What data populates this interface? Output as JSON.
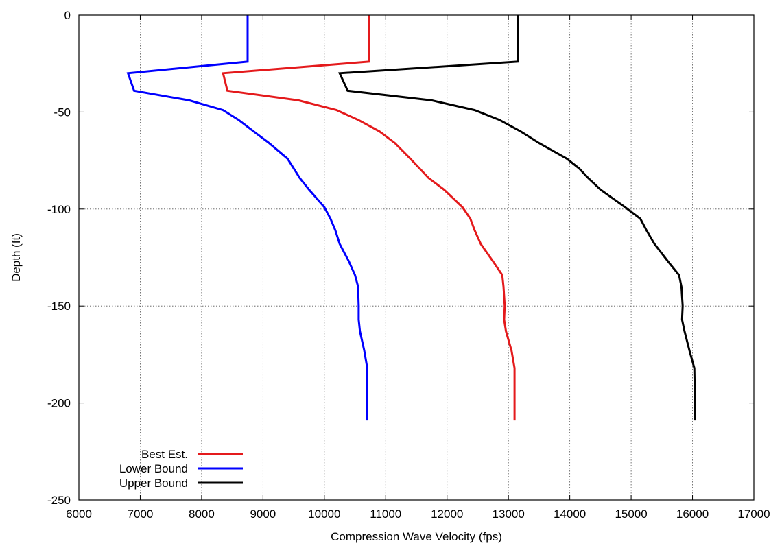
{
  "chart_data": {
    "type": "line",
    "title": "",
    "xlabel": "Compression Wave Velocity (fps)",
    "ylabel": "Depth (ft)",
    "xlim": [
      6000,
      17000
    ],
    "ylim": [
      -250,
      0
    ],
    "xticks": [
      6000,
      7000,
      8000,
      9000,
      10000,
      11000,
      12000,
      13000,
      14000,
      15000,
      16000,
      17000
    ],
    "yticks": [
      0,
      -50,
      -100,
      -150,
      -200,
      -250
    ],
    "xtick_labels": [
      "6000",
      "7000",
      "8000",
      "9000",
      "10000",
      "11000",
      "12000",
      "13000",
      "14000",
      "15000",
      "16000",
      "17000"
    ],
    "ytick_labels": [
      "0",
      "-50",
      "-100",
      "-150",
      "-200",
      "-250"
    ],
    "grid": true,
    "legend_position": "bottom-left",
    "series": [
      {
        "name": "Best Est.",
        "color": "#e41a1c",
        "points": [
          [
            10730,
            0
          ],
          [
            10730,
            -24
          ],
          [
            8350,
            -30
          ],
          [
            8420,
            -39
          ],
          [
            9580,
            -44
          ],
          [
            10200,
            -49
          ],
          [
            10550,
            -54
          ],
          [
            10900,
            -60
          ],
          [
            11150,
            -66
          ],
          [
            11400,
            -74
          ],
          [
            11550,
            -79
          ],
          [
            11700,
            -84
          ],
          [
            11950,
            -90
          ],
          [
            12250,
            -99
          ],
          [
            12380,
            -105
          ],
          [
            12450,
            -111
          ],
          [
            12550,
            -118
          ],
          [
            12750,
            -127
          ],
          [
            12900,
            -134
          ],
          [
            12920,
            -140
          ],
          [
            12940,
            -150
          ],
          [
            12930,
            -157
          ],
          [
            12960,
            -163
          ],
          [
            13050,
            -173
          ],
          [
            13100,
            -182
          ],
          [
            13100,
            -200
          ],
          [
            13100,
            -209
          ]
        ]
      },
      {
        "name": "Lower Bound",
        "color": "#0000ff",
        "points": [
          [
            8750,
            0
          ],
          [
            8750,
            -24
          ],
          [
            6800,
            -30
          ],
          [
            6900,
            -39
          ],
          [
            7800,
            -44
          ],
          [
            8350,
            -49
          ],
          [
            8600,
            -54
          ],
          [
            8850,
            -60
          ],
          [
            9100,
            -66
          ],
          [
            9400,
            -74
          ],
          [
            9500,
            -79
          ],
          [
            9600,
            -84
          ],
          [
            9750,
            -90
          ],
          [
            10000,
            -99
          ],
          [
            10100,
            -105
          ],
          [
            10180,
            -111
          ],
          [
            10250,
            -118
          ],
          [
            10400,
            -127
          ],
          [
            10500,
            -134
          ],
          [
            10550,
            -140
          ],
          [
            10560,
            -150
          ],
          [
            10560,
            -157
          ],
          [
            10580,
            -163
          ],
          [
            10650,
            -173
          ],
          [
            10700,
            -182
          ],
          [
            10700,
            -200
          ],
          [
            10700,
            -209
          ]
        ]
      },
      {
        "name": "Upper Bound",
        "color": "#000000",
        "points": [
          [
            13150,
            0
          ],
          [
            13150,
            -24
          ],
          [
            10250,
            -30
          ],
          [
            10380,
            -39
          ],
          [
            11750,
            -44
          ],
          [
            12450,
            -49
          ],
          [
            12850,
            -54
          ],
          [
            13200,
            -60
          ],
          [
            13500,
            -66
          ],
          [
            13950,
            -74
          ],
          [
            14150,
            -79
          ],
          [
            14300,
            -84
          ],
          [
            14500,
            -90
          ],
          [
            14900,
            -99
          ],
          [
            15150,
            -105
          ],
          [
            15250,
            -111
          ],
          [
            15380,
            -118
          ],
          [
            15600,
            -127
          ],
          [
            15780,
            -134
          ],
          [
            15820,
            -140
          ],
          [
            15840,
            -150
          ],
          [
            15830,
            -157
          ],
          [
            15870,
            -163
          ],
          [
            15950,
            -173
          ],
          [
            16030,
            -182
          ],
          [
            16040,
            -200
          ],
          [
            16040,
            -209
          ]
        ]
      }
    ]
  }
}
